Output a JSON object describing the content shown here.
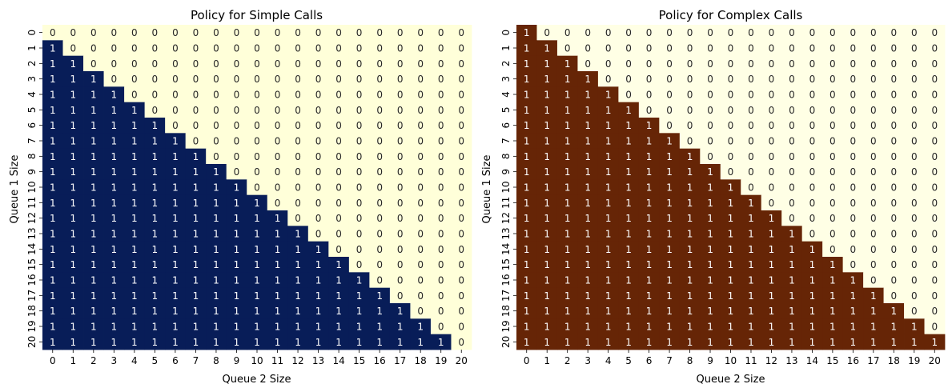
{
  "chart_data": [
    {
      "type": "heatmap",
      "title": "Policy for Simple Calls",
      "xlabel": "Queue 2 Size",
      "ylabel": "Queue 1 Size",
      "x_ticks": [
        "0",
        "1",
        "2",
        "3",
        "4",
        "5",
        "6",
        "7",
        "8",
        "9",
        "10",
        "11",
        "12",
        "13",
        "14",
        "15",
        "16",
        "17",
        "18",
        "19",
        "20"
      ],
      "y_ticks": [
        "0",
        "1",
        "2",
        "3",
        "4",
        "5",
        "6",
        "7",
        "8",
        "9",
        "10",
        "11",
        "12",
        "13",
        "14",
        "15",
        "16",
        "17",
        "18",
        "19",
        "20"
      ],
      "rule": "value = 1 if Queue 1 Size > Queue 2 Size else 0",
      "values": [
        [
          0,
          0,
          0,
          0,
          0,
          0,
          0,
          0,
          0,
          0,
          0,
          0,
          0,
          0,
          0,
          0,
          0,
          0,
          0,
          0,
          0
        ],
        [
          1,
          0,
          0,
          0,
          0,
          0,
          0,
          0,
          0,
          0,
          0,
          0,
          0,
          0,
          0,
          0,
          0,
          0,
          0,
          0,
          0
        ],
        [
          1,
          1,
          0,
          0,
          0,
          0,
          0,
          0,
          0,
          0,
          0,
          0,
          0,
          0,
          0,
          0,
          0,
          0,
          0,
          0,
          0
        ],
        [
          1,
          1,
          1,
          0,
          0,
          0,
          0,
          0,
          0,
          0,
          0,
          0,
          0,
          0,
          0,
          0,
          0,
          0,
          0,
          0,
          0
        ],
        [
          1,
          1,
          1,
          1,
          0,
          0,
          0,
          0,
          0,
          0,
          0,
          0,
          0,
          0,
          0,
          0,
          0,
          0,
          0,
          0,
          0
        ],
        [
          1,
          1,
          1,
          1,
          1,
          0,
          0,
          0,
          0,
          0,
          0,
          0,
          0,
          0,
          0,
          0,
          0,
          0,
          0,
          0,
          0
        ],
        [
          1,
          1,
          1,
          1,
          1,
          1,
          0,
          0,
          0,
          0,
          0,
          0,
          0,
          0,
          0,
          0,
          0,
          0,
          0,
          0,
          0
        ],
        [
          1,
          1,
          1,
          1,
          1,
          1,
          1,
          0,
          0,
          0,
          0,
          0,
          0,
          0,
          0,
          0,
          0,
          0,
          0,
          0,
          0
        ],
        [
          1,
          1,
          1,
          1,
          1,
          1,
          1,
          1,
          0,
          0,
          0,
          0,
          0,
          0,
          0,
          0,
          0,
          0,
          0,
          0,
          0
        ],
        [
          1,
          1,
          1,
          1,
          1,
          1,
          1,
          1,
          1,
          0,
          0,
          0,
          0,
          0,
          0,
          0,
          0,
          0,
          0,
          0,
          0
        ],
        [
          1,
          1,
          1,
          1,
          1,
          1,
          1,
          1,
          1,
          1,
          0,
          0,
          0,
          0,
          0,
          0,
          0,
          0,
          0,
          0,
          0
        ],
        [
          1,
          1,
          1,
          1,
          1,
          1,
          1,
          1,
          1,
          1,
          1,
          0,
          0,
          0,
          0,
          0,
          0,
          0,
          0,
          0,
          0
        ],
        [
          1,
          1,
          1,
          1,
          1,
          1,
          1,
          1,
          1,
          1,
          1,
          1,
          0,
          0,
          0,
          0,
          0,
          0,
          0,
          0,
          0
        ],
        [
          1,
          1,
          1,
          1,
          1,
          1,
          1,
          1,
          1,
          1,
          1,
          1,
          1,
          0,
          0,
          0,
          0,
          0,
          0,
          0,
          0
        ],
        [
          1,
          1,
          1,
          1,
          1,
          1,
          1,
          1,
          1,
          1,
          1,
          1,
          1,
          1,
          0,
          0,
          0,
          0,
          0,
          0,
          0
        ],
        [
          1,
          1,
          1,
          1,
          1,
          1,
          1,
          1,
          1,
          1,
          1,
          1,
          1,
          1,
          1,
          0,
          0,
          0,
          0,
          0,
          0
        ],
        [
          1,
          1,
          1,
          1,
          1,
          1,
          1,
          1,
          1,
          1,
          1,
          1,
          1,
          1,
          1,
          1,
          0,
          0,
          0,
          0,
          0
        ],
        [
          1,
          1,
          1,
          1,
          1,
          1,
          1,
          1,
          1,
          1,
          1,
          1,
          1,
          1,
          1,
          1,
          1,
          0,
          0,
          0,
          0
        ],
        [
          1,
          1,
          1,
          1,
          1,
          1,
          1,
          1,
          1,
          1,
          1,
          1,
          1,
          1,
          1,
          1,
          1,
          1,
          0,
          0,
          0
        ],
        [
          1,
          1,
          1,
          1,
          1,
          1,
          1,
          1,
          1,
          1,
          1,
          1,
          1,
          1,
          1,
          1,
          1,
          1,
          1,
          0,
          0
        ],
        [
          1,
          1,
          1,
          1,
          1,
          1,
          1,
          1,
          1,
          1,
          1,
          1,
          1,
          1,
          1,
          1,
          1,
          1,
          1,
          1,
          0
        ]
      ],
      "colors": {
        "one": "#081d58",
        "zero": "#ffffd9",
        "text_on_one": "#ffffff",
        "text_on_zero": "#262626"
      },
      "colorbar": false,
      "annotated": true
    },
    {
      "type": "heatmap",
      "title": "Policy for Complex Calls",
      "xlabel": "Queue 2 Size",
      "ylabel": "Queue 1 Size",
      "x_ticks": [
        "0",
        "1",
        "2",
        "3",
        "4",
        "5",
        "6",
        "7",
        "8",
        "9",
        "10",
        "11",
        "12",
        "13",
        "14",
        "15",
        "16",
        "17",
        "18",
        "19",
        "20"
      ],
      "y_ticks": [
        "0",
        "1",
        "2",
        "3",
        "4",
        "5",
        "6",
        "7",
        "8",
        "9",
        "10",
        "11",
        "12",
        "13",
        "14",
        "15",
        "16",
        "17",
        "18",
        "19",
        "20"
      ],
      "rule": "value = 1 if Queue 1 Size >= Queue 2 Size else 0",
      "values": [
        [
          1,
          0,
          0,
          0,
          0,
          0,
          0,
          0,
          0,
          0,
          0,
          0,
          0,
          0,
          0,
          0,
          0,
          0,
          0,
          0,
          0
        ],
        [
          1,
          1,
          0,
          0,
          0,
          0,
          0,
          0,
          0,
          0,
          0,
          0,
          0,
          0,
          0,
          0,
          0,
          0,
          0,
          0,
          0
        ],
        [
          1,
          1,
          1,
          0,
          0,
          0,
          0,
          0,
          0,
          0,
          0,
          0,
          0,
          0,
          0,
          0,
          0,
          0,
          0,
          0,
          0
        ],
        [
          1,
          1,
          1,
          1,
          0,
          0,
          0,
          0,
          0,
          0,
          0,
          0,
          0,
          0,
          0,
          0,
          0,
          0,
          0,
          0,
          0
        ],
        [
          1,
          1,
          1,
          1,
          1,
          0,
          0,
          0,
          0,
          0,
          0,
          0,
          0,
          0,
          0,
          0,
          0,
          0,
          0,
          0,
          0
        ],
        [
          1,
          1,
          1,
          1,
          1,
          1,
          0,
          0,
          0,
          0,
          0,
          0,
          0,
          0,
          0,
          0,
          0,
          0,
          0,
          0,
          0
        ],
        [
          1,
          1,
          1,
          1,
          1,
          1,
          1,
          0,
          0,
          0,
          0,
          0,
          0,
          0,
          0,
          0,
          0,
          0,
          0,
          0,
          0
        ],
        [
          1,
          1,
          1,
          1,
          1,
          1,
          1,
          1,
          0,
          0,
          0,
          0,
          0,
          0,
          0,
          0,
          0,
          0,
          0,
          0,
          0
        ],
        [
          1,
          1,
          1,
          1,
          1,
          1,
          1,
          1,
          1,
          0,
          0,
          0,
          0,
          0,
          0,
          0,
          0,
          0,
          0,
          0,
          0
        ],
        [
          1,
          1,
          1,
          1,
          1,
          1,
          1,
          1,
          1,
          1,
          0,
          0,
          0,
          0,
          0,
          0,
          0,
          0,
          0,
          0,
          0
        ],
        [
          1,
          1,
          1,
          1,
          1,
          1,
          1,
          1,
          1,
          1,
          1,
          0,
          0,
          0,
          0,
          0,
          0,
          0,
          0,
          0,
          0
        ],
        [
          1,
          1,
          1,
          1,
          1,
          1,
          1,
          1,
          1,
          1,
          1,
          1,
          0,
          0,
          0,
          0,
          0,
          0,
          0,
          0,
          0
        ],
        [
          1,
          1,
          1,
          1,
          1,
          1,
          1,
          1,
          1,
          1,
          1,
          1,
          1,
          0,
          0,
          0,
          0,
          0,
          0,
          0,
          0
        ],
        [
          1,
          1,
          1,
          1,
          1,
          1,
          1,
          1,
          1,
          1,
          1,
          1,
          1,
          1,
          0,
          0,
          0,
          0,
          0,
          0,
          0
        ],
        [
          1,
          1,
          1,
          1,
          1,
          1,
          1,
          1,
          1,
          1,
          1,
          1,
          1,
          1,
          1,
          0,
          0,
          0,
          0,
          0,
          0
        ],
        [
          1,
          1,
          1,
          1,
          1,
          1,
          1,
          1,
          1,
          1,
          1,
          1,
          1,
          1,
          1,
          1,
          0,
          0,
          0,
          0,
          0
        ],
        [
          1,
          1,
          1,
          1,
          1,
          1,
          1,
          1,
          1,
          1,
          1,
          1,
          1,
          1,
          1,
          1,
          1,
          0,
          0,
          0,
          0
        ],
        [
          1,
          1,
          1,
          1,
          1,
          1,
          1,
          1,
          1,
          1,
          1,
          1,
          1,
          1,
          1,
          1,
          1,
          1,
          0,
          0,
          0
        ],
        [
          1,
          1,
          1,
          1,
          1,
          1,
          1,
          1,
          1,
          1,
          1,
          1,
          1,
          1,
          1,
          1,
          1,
          1,
          1,
          0,
          0
        ],
        [
          1,
          1,
          1,
          1,
          1,
          1,
          1,
          1,
          1,
          1,
          1,
          1,
          1,
          1,
          1,
          1,
          1,
          1,
          1,
          1,
          0
        ],
        [
          1,
          1,
          1,
          1,
          1,
          1,
          1,
          1,
          1,
          1,
          1,
          1,
          1,
          1,
          1,
          1,
          1,
          1,
          1,
          1,
          1
        ]
      ],
      "colors": {
        "one": "#662506",
        "zero": "#ffffe5",
        "text_on_one": "#ffffff",
        "text_on_zero": "#262626"
      },
      "colorbar": false,
      "annotated": true
    }
  ]
}
